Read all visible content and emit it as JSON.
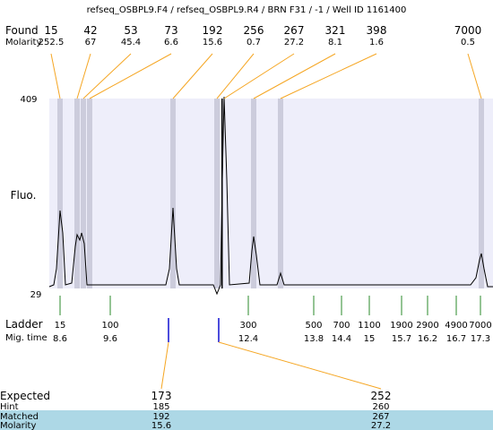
{
  "header": {
    "title": "refseq_OSBPL9.F4 / refseq_OSBPL9.R4 / BRN F31 / -1 / Well ID 1161400"
  },
  "found": {
    "label": "Found",
    "molarity_label": "Molarity",
    "peaks": [
      {
        "size": "15",
        "molarity": "252.5"
      },
      {
        "size": "42",
        "molarity": "67"
      },
      {
        "size": "53",
        "molarity": "45.4"
      },
      {
        "size": "73",
        "molarity": "6.6"
      },
      {
        "size": "192",
        "molarity": "15.6"
      },
      {
        "size": "256",
        "molarity": "0.7"
      },
      {
        "size": "267",
        "molarity": "27.2"
      },
      {
        "size": "321",
        "molarity": "8.1"
      },
      {
        "size": "398",
        "molarity": "1.6"
      },
      {
        "size": "7000",
        "molarity": "0.5"
      }
    ]
  },
  "plot": {
    "y_top": "409",
    "y_bottom": "29",
    "y_label": "Fluo."
  },
  "ladder": {
    "label": "Ladder",
    "time_label": "Mig. time",
    "entries": [
      {
        "size": "15",
        "time": "8.6"
      },
      {
        "size": "100",
        "time": "9.6"
      },
      {
        "size": "300",
        "time": "12.4"
      },
      {
        "size": "500",
        "time": "13.8"
      },
      {
        "size": "700",
        "time": "14.4"
      },
      {
        "size": "1100",
        "time": "15"
      },
      {
        "size": "1900",
        "time": "15.7"
      },
      {
        "size": "2900",
        "time": "16.2"
      },
      {
        "size": "4900",
        "time": "16.7"
      },
      {
        "size": "7000",
        "time": "17.3"
      }
    ]
  },
  "expected": {
    "labels": [
      "Expected",
      "Hint",
      "Matched",
      "Molarity"
    ],
    "columns": [
      [
        "173",
        "185",
        "192",
        "15.6"
      ],
      [
        "252",
        "260",
        "267",
        "27.2"
      ]
    ]
  }
}
